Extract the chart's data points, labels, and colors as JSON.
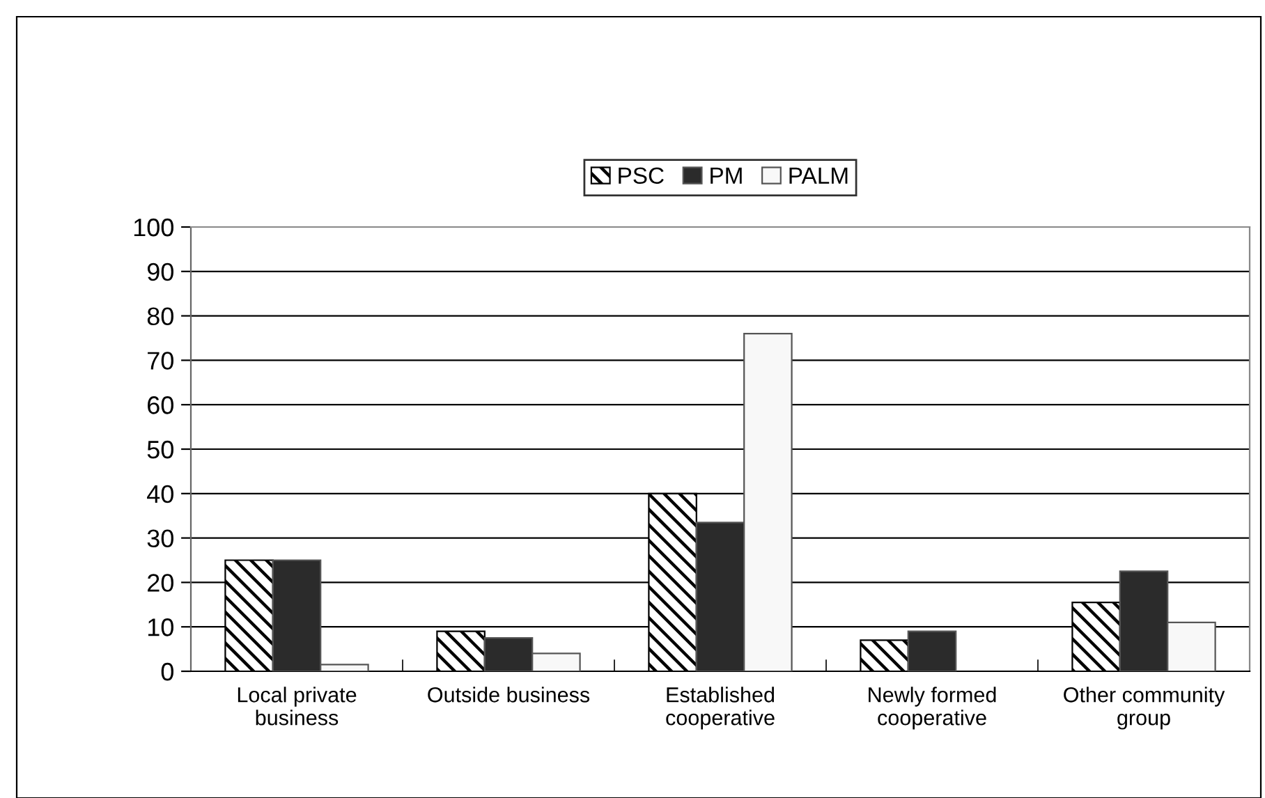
{
  "chart_data": {
    "type": "bar",
    "categories": [
      "Local private\nbusiness",
      "Outside business",
      "Established\ncooperative",
      "Newly formed\ncooperative",
      "Other community\ngroup"
    ],
    "series": [
      {
        "name": "PSC",
        "color": "#000000",
        "values": [
          25,
          9,
          40,
          7,
          15.5
        ]
      },
      {
        "name": "PM",
        "color": "#2b2b2b",
        "values": [
          25,
          7.5,
          33.5,
          9,
          22.5
        ]
      },
      {
        "name": "PALM",
        "color": "#f8f8f8",
        "values": [
          1.5,
          4,
          76,
          null,
          11
        ]
      }
    ],
    "ylim": [
      0,
      100
    ],
    "yticks": [
      0,
      10,
      20,
      30,
      40,
      50,
      60,
      70,
      80,
      90,
      100
    ],
    "grid": "y",
    "legend": "top"
  }
}
